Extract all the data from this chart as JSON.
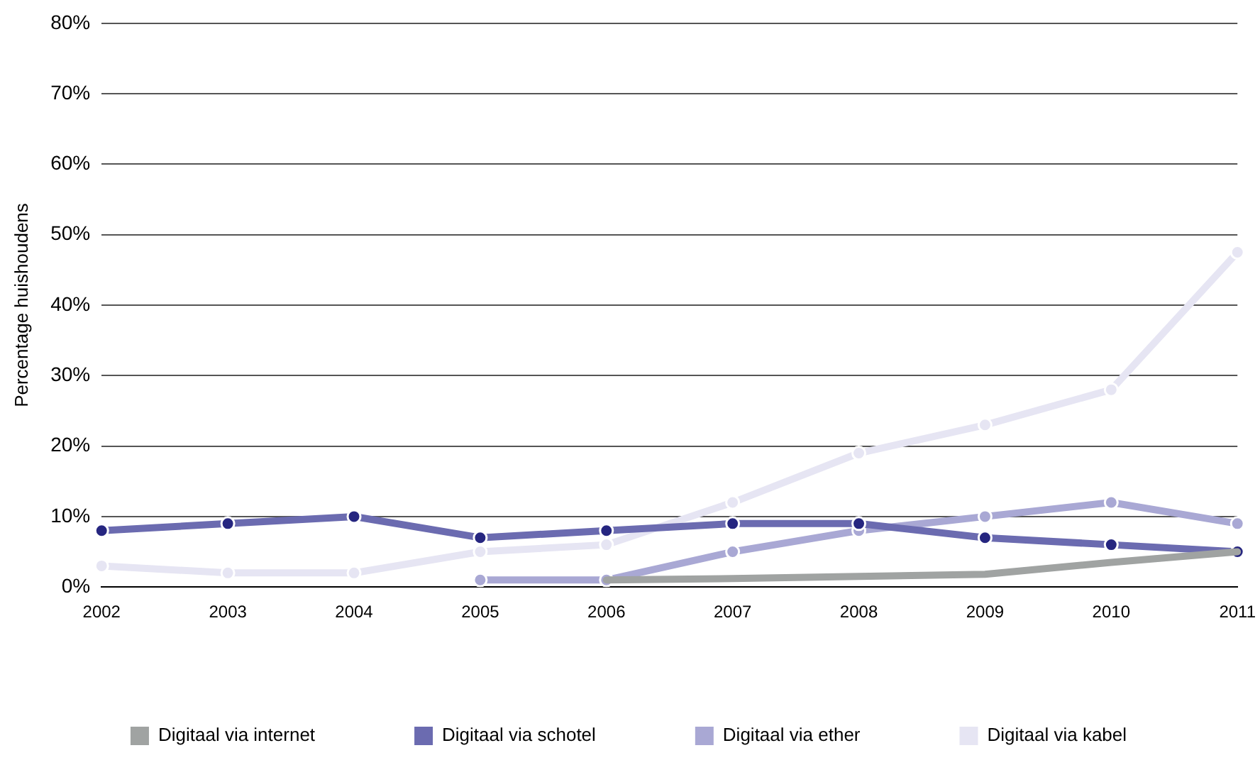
{
  "chart_data": {
    "type": "line",
    "ylabel": "Percentage huishoudens",
    "categories": [
      "2002",
      "2003",
      "2004",
      "2005",
      "2006",
      "2007",
      "2008",
      "2009",
      "2010",
      "2011"
    ],
    "series": [
      {
        "name": "Digitaal via internet",
        "color": "#a0a3a2",
        "marker": "none",
        "values": [
          null,
          null,
          null,
          null,
          1,
          1.2,
          1.5,
          1.8,
          3.5,
          5
        ]
      },
      {
        "name": "Digitaal via schotel",
        "color": "#6b6bb0",
        "marker": "circle",
        "values": [
          8,
          9,
          10,
          7,
          8,
          9,
          9,
          7,
          6,
          5
        ]
      },
      {
        "name": "Digitaal via ether",
        "color": "#a9a8d4",
        "marker": "circle",
        "values": [
          null,
          null,
          null,
          1,
          1,
          5,
          8,
          10,
          12,
          9
        ]
      },
      {
        "name": "Digitaal via kabel",
        "color": "#e6e5f3",
        "marker": "circle",
        "values": [
          3,
          2,
          2,
          5,
          6,
          12,
          19,
          23,
          28,
          47.5
        ]
      }
    ],
    "ylim": [
      0,
      80
    ],
    "yticks": [
      {
        "value": 0,
        "label": "0%"
      },
      {
        "value": 10,
        "label": "10%"
      },
      {
        "value": 20,
        "label": "20%"
      },
      {
        "value": 30,
        "label": "30%"
      },
      {
        "value": 40,
        "label": "40%"
      },
      {
        "value": 50,
        "label": "50%"
      },
      {
        "value": 60,
        "label": "60%"
      },
      {
        "value": 70,
        "label": "70%"
      },
      {
        "value": 80,
        "label": "80%"
      }
    ],
    "grid": "y",
    "legend": "bottom",
    "line_style": "solid"
  }
}
